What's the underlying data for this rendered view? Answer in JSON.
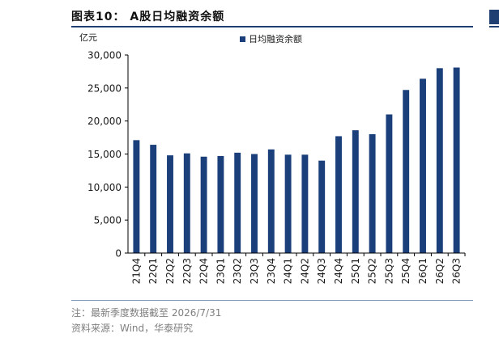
{
  "figure_title": "图表10： A股日均融资余额",
  "note": "注：最新季度数据截至 2026/7/31",
  "source": "资料来源：Wind，华泰研究",
  "colors": {
    "bar": "#1b3f7a",
    "axis": "#000000",
    "rule": "#1f3f73"
  },
  "chart_data": {
    "type": "bar",
    "title": "",
    "ylabel": "亿元",
    "xlabel": "",
    "ylim": [
      0,
      30000
    ],
    "yticks": [
      0,
      5000,
      10000,
      15000,
      20000,
      25000,
      30000
    ],
    "ytick_labels": [
      "0",
      "5,000",
      "10,000",
      "15,000",
      "20,000",
      "25,000",
      "30,000"
    ],
    "legend_position": "top",
    "grid": false,
    "categories": [
      "21Q4",
      "22Q1",
      "22Q2",
      "22Q3",
      "22Q4",
      "23Q1",
      "23Q2",
      "23Q3",
      "23Q4",
      "24Q1",
      "24Q2",
      "24Q3",
      "24Q4",
      "25Q1",
      "25Q2",
      "25Q3",
      "25Q4",
      "26Q1",
      "26Q2",
      "26Q3"
    ],
    "series": [
      {
        "name": "日均融资余额",
        "values": [
          17100,
          16400,
          14800,
          15100,
          14600,
          14700,
          15200,
          15000,
          15700,
          14900,
          14900,
          14000,
          17700,
          18600,
          18000,
          21000,
          24700,
          26400,
          28000,
          28100
        ]
      }
    ]
  }
}
